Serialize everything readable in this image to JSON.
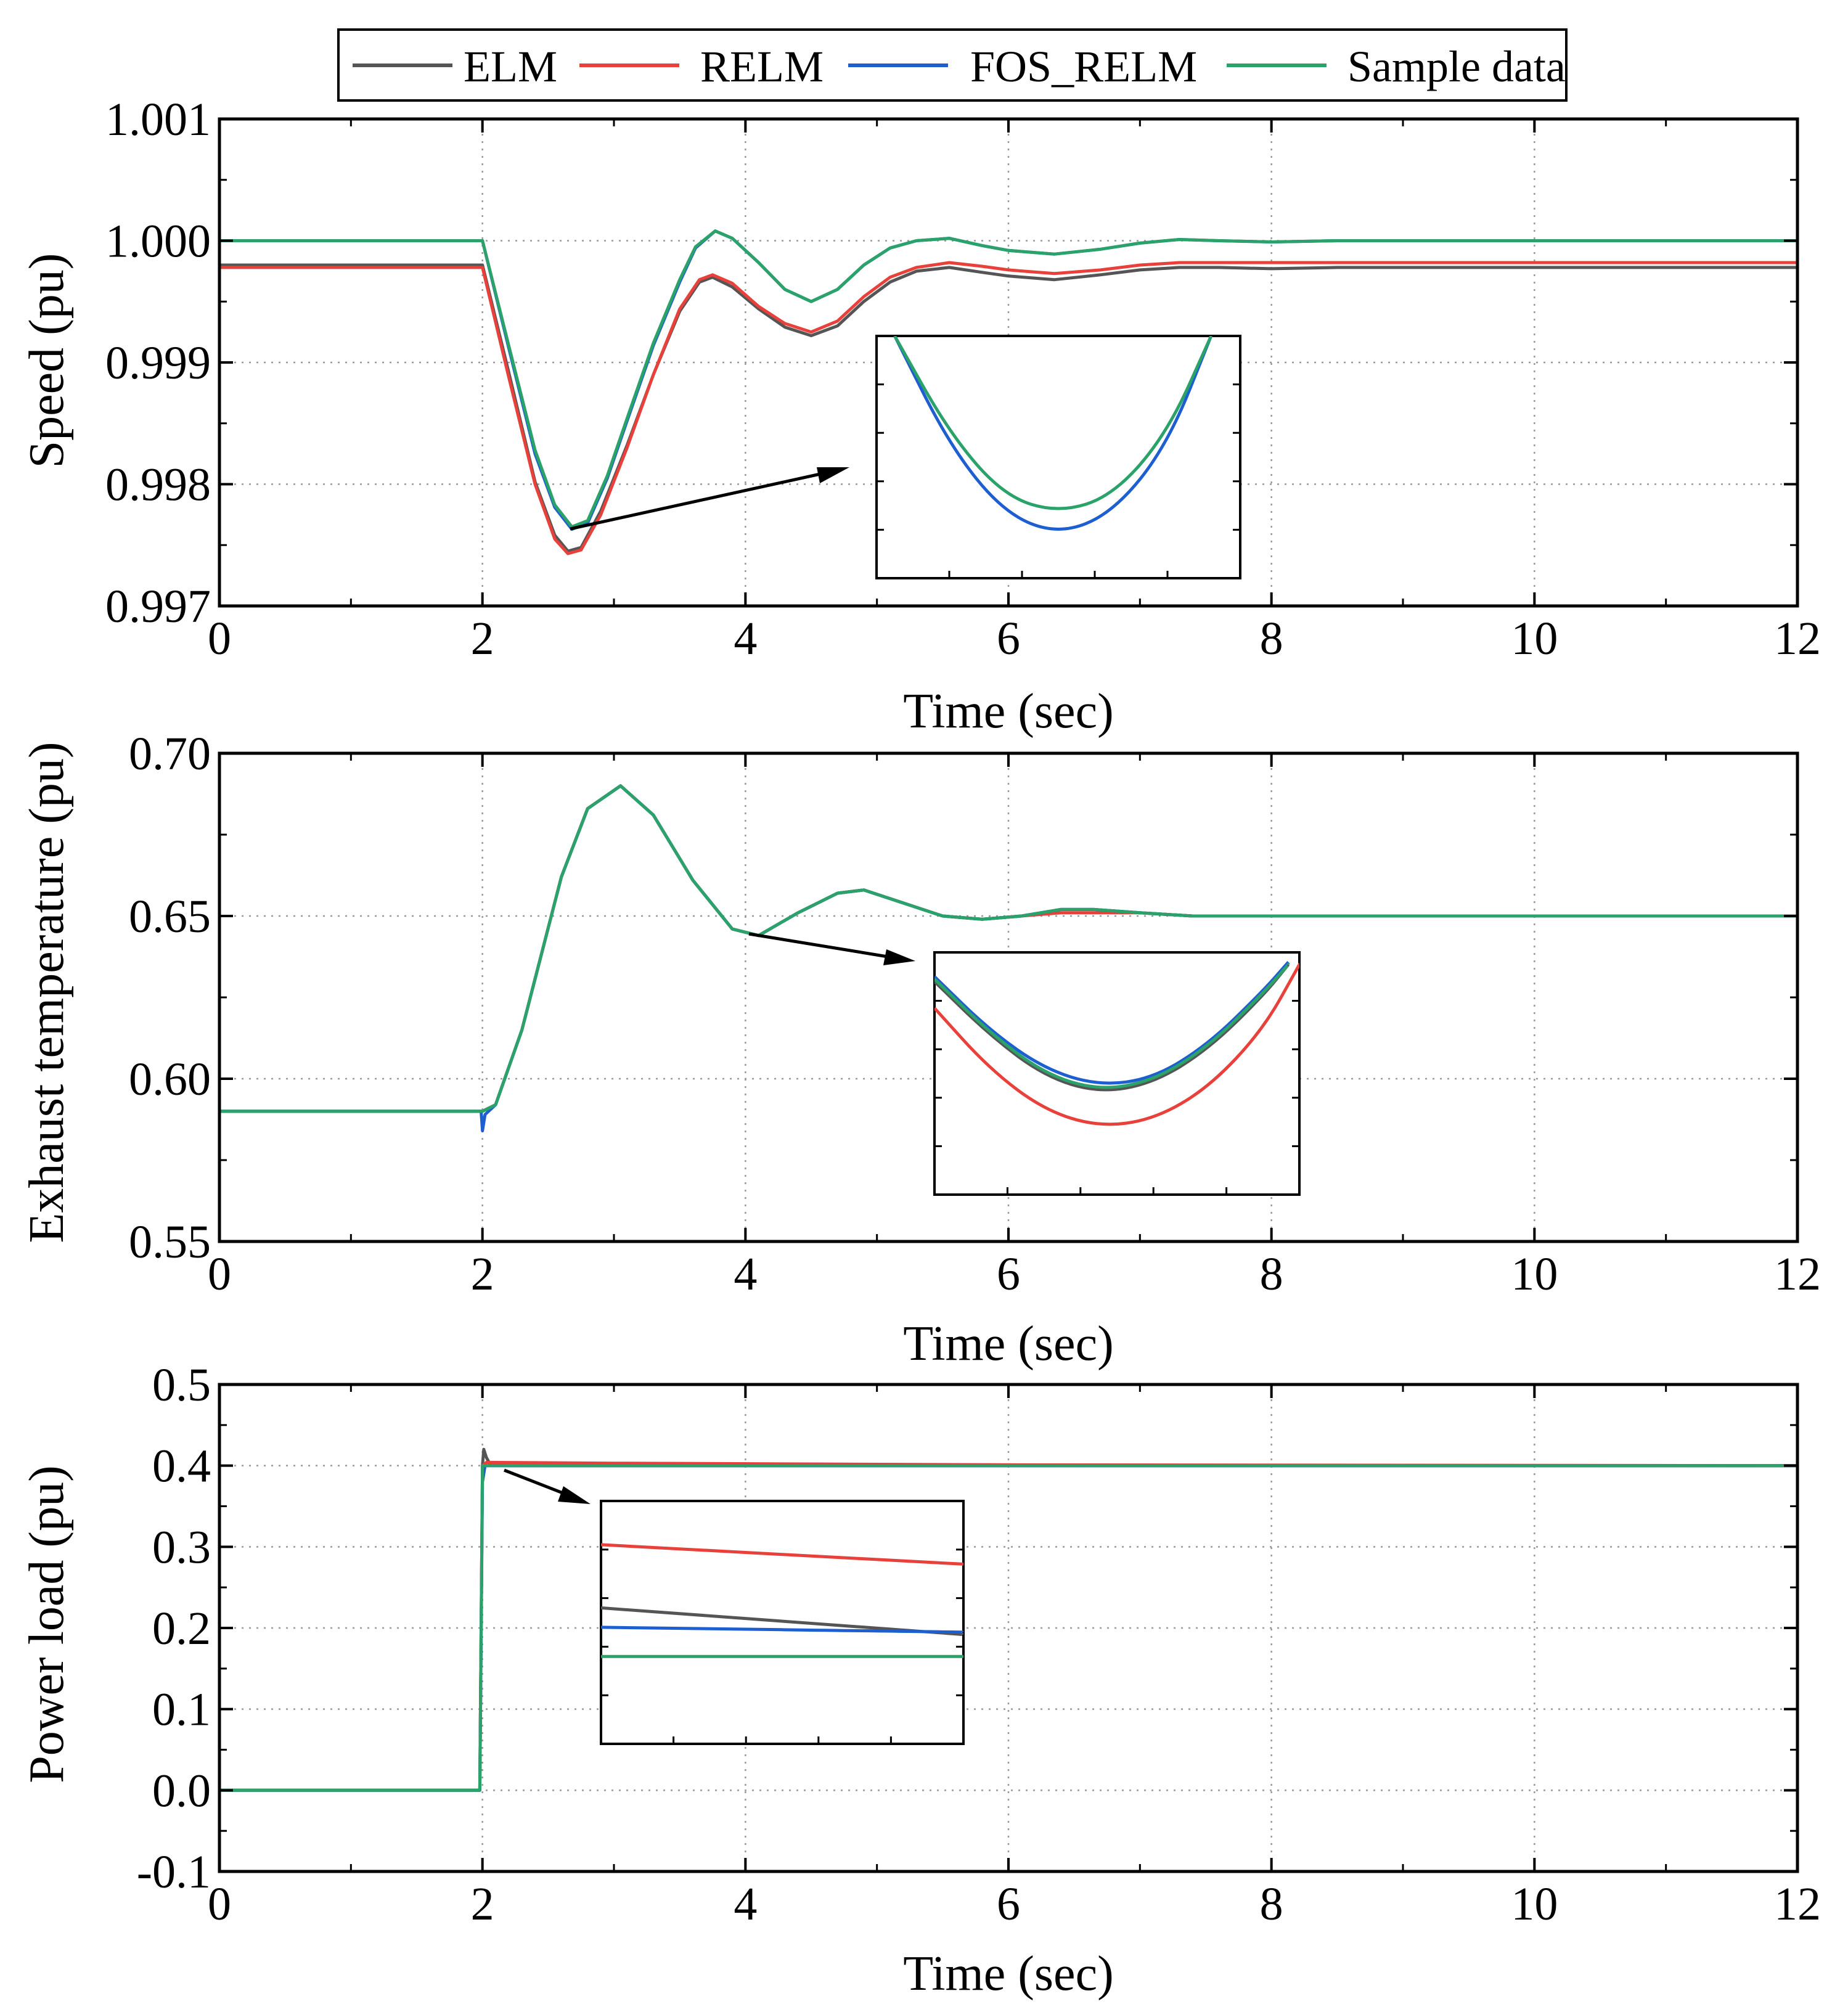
{
  "chart_data": [
    {
      "type": "line",
      "id": "speed",
      "xlabel": "Time (sec)",
      "ylabel": "Speed (pu)",
      "xlim": [
        0,
        12
      ],
      "ylim": [
        0.997,
        1.001
      ],
      "xticks": [
        0,
        2,
        4,
        6,
        8,
        10,
        12
      ],
      "xtick_labels": [
        "0",
        "2",
        "4",
        "6",
        "8",
        "10",
        "12"
      ],
      "yticks": [
        0.997,
        0.998,
        0.999,
        1.0,
        1.001
      ],
      "ytick_labels": [
        "0.997",
        "0.998",
        "0.999",
        "1.000",
        "1.001"
      ],
      "grid": true,
      "series": [
        {
          "name": "ELM",
          "x": [
            0,
            2,
            2.2,
            2.4,
            2.55,
            2.65,
            2.75,
            2.9,
            3.1,
            3.3,
            3.5,
            3.65,
            3.75,
            3.9,
            4.1,
            4.3,
            4.5,
            4.7,
            4.9,
            5.1,
            5.3,
            5.55,
            5.8,
            6.0,
            6.35,
            6.7,
            7.0,
            7.3,
            7.6,
            8.0,
            8.5,
            9.0,
            10,
            11,
            12
          ],
          "y": [
            0.9998,
            0.9998,
            0.99892,
            0.99802,
            0.99758,
            0.99745,
            0.99748,
            0.99778,
            0.99832,
            0.9989,
            0.99942,
            0.99966,
            0.9997,
            0.99962,
            0.99944,
            0.99929,
            0.99922,
            0.9993,
            0.9995,
            0.99966,
            0.99975,
            0.99978,
            0.99974,
            0.99971,
            0.99968,
            0.99972,
            0.99976,
            0.99978,
            0.99978,
            0.99977,
            0.99978,
            0.99978,
            0.99978,
            0.99978,
            0.99978
          ]
        },
        {
          "name": "RELM",
          "x": [
            0,
            2,
            2.2,
            2.4,
            2.55,
            2.65,
            2.75,
            2.9,
            3.1,
            3.3,
            3.5,
            3.65,
            3.75,
            3.9,
            4.1,
            4.3,
            4.5,
            4.7,
            4.9,
            5.1,
            5.3,
            5.55,
            5.8,
            6.0,
            6.35,
            6.7,
            7.0,
            7.3,
            7.6,
            8.0,
            8.5,
            9.0,
            10,
            11,
            12
          ],
          "y": [
            0.99978,
            0.99978,
            0.99888,
            0.998,
            0.99755,
            0.99743,
            0.99746,
            0.99775,
            0.9983,
            0.9989,
            0.99944,
            0.99968,
            0.99972,
            0.99965,
            0.99946,
            0.99932,
            0.99925,
            0.99934,
            0.99954,
            0.9997,
            0.99978,
            0.99982,
            0.99979,
            0.99976,
            0.99973,
            0.99976,
            0.9998,
            0.99982,
            0.99982,
            0.99982,
            0.99982,
            0.99982,
            0.99982,
            0.99982,
            0.99982
          ]
        },
        {
          "name": "FOS_RELM",
          "x": [
            0,
            2,
            2.2,
            2.4,
            2.55,
            2.68,
            2.8,
            2.95,
            3.1,
            3.3,
            3.5,
            3.62,
            3.77,
            3.9,
            4.1,
            4.3,
            4.5,
            4.7,
            4.9,
            5.1,
            5.3,
            5.55,
            5.8,
            6.0,
            6.35,
            6.7,
            7.0,
            7.3,
            7.6,
            8.0,
            8.5,
            9.0,
            10,
            11,
            12
          ],
          "y": [
            1.0,
            1.0,
            0.99912,
            0.99825,
            0.99781,
            0.99763,
            0.99768,
            0.99805,
            0.99852,
            0.99914,
            0.99966,
            0.99994,
            1.00008,
            1.00002,
            0.99982,
            0.9996,
            0.9995,
            0.9996,
            0.9998,
            0.99994,
            1.0,
            1.00002,
            0.99996,
            0.99992,
            0.99989,
            0.99993,
            0.99998,
            1.00001,
            1.0,
            0.99999,
            1.0,
            1.0,
            1.0,
            1.0,
            1.0
          ]
        },
        {
          "name": "Sample data",
          "x": [
            0,
            2,
            2.2,
            2.4,
            2.55,
            2.68,
            2.8,
            2.95,
            3.1,
            3.3,
            3.5,
            3.62,
            3.77,
            3.9,
            4.1,
            4.3,
            4.5,
            4.7,
            4.9,
            5.1,
            5.3,
            5.55,
            5.8,
            6.0,
            6.35,
            6.7,
            7.0,
            7.3,
            7.6,
            8.0,
            8.5,
            9.0,
            10,
            11,
            12
          ],
          "y": [
            1.0,
            1.0,
            0.99914,
            0.99828,
            0.99783,
            0.99765,
            0.9977,
            0.99807,
            0.99854,
            0.99916,
            0.99968,
            0.99995,
            1.00008,
            1.00002,
            0.99982,
            0.9996,
            0.9995,
            0.9996,
            0.9998,
            0.99994,
            1.0,
            1.00002,
            0.99996,
            0.99992,
            0.99989,
            0.99993,
            0.99998,
            1.00001,
            1.0,
            0.99999,
            1.0,
            1.0,
            1.0,
            1.0,
            1.0
          ]
        }
      ],
      "inset": {
        "note": "zoom of the speed minimum near t = 2.7 s",
        "series": [
          {
            "name": "FOS_RELM",
            "x": [
              0.05,
              0.2,
              0.35,
              0.5,
              0.65,
              0.8,
              0.92
            ],
            "y": [
              1.0,
              0.55,
              0.27,
              0.18,
              0.27,
              0.55,
              1.0
            ]
          },
          {
            "name": "Sample data",
            "x": [
              0.05,
              0.2,
              0.35,
              0.5,
              0.65,
              0.8,
              0.92
            ],
            "y": [
              1.0,
              0.6,
              0.34,
              0.27,
              0.34,
              0.6,
              1.0
            ]
          }
        ]
      }
    },
    {
      "type": "line",
      "id": "exhaust",
      "xlabel": "Time (sec)",
      "ylabel": "Exhaust temperature (pu)",
      "xlim": [
        0,
        12
      ],
      "ylim": [
        0.55,
        0.7
      ],
      "xticks": [
        0,
        2,
        4,
        6,
        8,
        10,
        12
      ],
      "xtick_labels": [
        "0",
        "2",
        "4",
        "6",
        "8",
        "10",
        "12"
      ],
      "yticks": [
        0.55,
        0.6,
        0.65,
        0.7
      ],
      "ytick_labels": [
        "0.55",
        "0.60",
        "0.65",
        "0.70"
      ],
      "grid": true,
      "series": [
        {
          "name": "ELM",
          "x": [
            0,
            2,
            2.1,
            2.3,
            2.6,
            2.8,
            3.05,
            3.3,
            3.6,
            3.9,
            4.1,
            4.4,
            4.7,
            4.9,
            5.2,
            5.5,
            5.8,
            6.1,
            6.4,
            6.65,
            7.0,
            7.4,
            8.0,
            9,
            10,
            11,
            12
          ],
          "y": [
            0.59,
            0.59,
            0.592,
            0.615,
            0.662,
            0.683,
            0.69,
            0.681,
            0.661,
            0.646,
            0.644,
            0.651,
            0.657,
            0.658,
            0.654,
            0.65,
            0.649,
            0.65,
            0.652,
            0.652,
            0.651,
            0.65,
            0.65,
            0.65,
            0.65,
            0.65,
            0.65
          ]
        },
        {
          "name": "RELM",
          "x": [
            0,
            2,
            2.1,
            2.3,
            2.6,
            2.8,
            3.05,
            3.3,
            3.6,
            3.9,
            4.1,
            4.4,
            4.7,
            4.9,
            5.2,
            5.5,
            5.8,
            6.1,
            6.4,
            6.65,
            7.0,
            7.4,
            8.0,
            9,
            10,
            11,
            12
          ],
          "y": [
            0.59,
            0.59,
            0.592,
            0.615,
            0.662,
            0.683,
            0.69,
            0.681,
            0.661,
            0.646,
            0.644,
            0.651,
            0.657,
            0.658,
            0.654,
            0.65,
            0.649,
            0.65,
            0.651,
            0.651,
            0.651,
            0.65,
            0.65,
            0.65,
            0.65,
            0.65,
            0.65
          ]
        },
        {
          "name": "FOS_RELM",
          "x": [
            0,
            1.99,
            2.0,
            2.02,
            2.1,
            2.3,
            2.6,
            2.8,
            3.05,
            3.3,
            3.6,
            3.9,
            4.1,
            4.4,
            4.7,
            4.9,
            5.2,
            5.5,
            5.8,
            6.1,
            6.4,
            6.65,
            7.0,
            7.4,
            8.0,
            9,
            10,
            11,
            12
          ],
          "y": [
            0.59,
            0.59,
            0.584,
            0.589,
            0.592,
            0.615,
            0.662,
            0.683,
            0.69,
            0.681,
            0.661,
            0.646,
            0.644,
            0.651,
            0.657,
            0.658,
            0.654,
            0.65,
            0.649,
            0.65,
            0.652,
            0.652,
            0.651,
            0.65,
            0.65,
            0.65,
            0.65,
            0.65,
            0.65
          ]
        },
        {
          "name": "Sample data",
          "x": [
            0,
            2,
            2.1,
            2.3,
            2.6,
            2.8,
            3.05,
            3.3,
            3.6,
            3.9,
            4.1,
            4.4,
            4.7,
            4.9,
            5.2,
            5.5,
            5.8,
            6.1,
            6.4,
            6.65,
            7.0,
            7.4,
            8.0,
            9,
            10,
            11,
            12
          ],
          "y": [
            0.59,
            0.59,
            0.592,
            0.615,
            0.662,
            0.683,
            0.69,
            0.681,
            0.661,
            0.646,
            0.644,
            0.651,
            0.657,
            0.658,
            0.654,
            0.65,
            0.649,
            0.65,
            0.652,
            0.652,
            0.651,
            0.65,
            0.65,
            0.65,
            0.65,
            0.65,
            0.65
          ]
        }
      ],
      "inset": {
        "note": "zoom of the exhaust temperature minimum near t = 4.1 s",
        "series": [
          {
            "name": "ELM",
            "x": [
              0,
              0.15,
              0.3,
              0.45,
              0.6,
              0.75,
              0.9,
              0.97
            ],
            "y": [
              0.88,
              0.66,
              0.49,
              0.42,
              0.46,
              0.6,
              0.82,
              0.95
            ]
          },
          {
            "name": "RELM",
            "x": [
              0,
              0.15,
              0.3,
              0.45,
              0.6,
              0.75,
              0.9,
              1.0
            ],
            "y": [
              0.77,
              0.52,
              0.35,
              0.28,
              0.31,
              0.44,
              0.68,
              0.95
            ]
          },
          {
            "name": "FOS_RELM",
            "x": [
              0,
              0.15,
              0.3,
              0.45,
              0.6,
              0.75,
              0.9,
              0.97
            ],
            "y": [
              0.9,
              0.68,
              0.52,
              0.45,
              0.48,
              0.62,
              0.84,
              0.96
            ]
          },
          {
            "name": "Sample data",
            "x": [
              0,
              0.15,
              0.3,
              0.45,
              0.6,
              0.75,
              0.9,
              0.97
            ],
            "y": [
              0.89,
              0.67,
              0.5,
              0.43,
              0.47,
              0.61,
              0.83,
              0.95
            ]
          }
        ]
      }
    },
    {
      "type": "line",
      "id": "power",
      "xlabel": "Time (sec)",
      "ylabel": "Power load (pu)",
      "xlim": [
        0,
        12
      ],
      "ylim": [
        -0.1,
        0.5
      ],
      "xticks": [
        0,
        2,
        4,
        6,
        8,
        10,
        12
      ],
      "xtick_labels": [
        "0",
        "2",
        "4",
        "6",
        "8",
        "10",
        "12"
      ],
      "yticks": [
        -0.1,
        0.0,
        0.1,
        0.2,
        0.3,
        0.4,
        0.5
      ],
      "ytick_labels": [
        "-0.1",
        "0.0",
        "0.1",
        "0.2",
        "0.3",
        "0.4",
        "0.5"
      ],
      "grid": true,
      "series": [
        {
          "name": "ELM",
          "x": [
            0,
            1.98,
            2.0,
            2.01,
            2.03,
            2.06,
            2.2,
            12
          ],
          "y": [
            0.0,
            0.0,
            0.4,
            0.42,
            0.41,
            0.401,
            0.4,
            0.4
          ]
        },
        {
          "name": "RELM",
          "x": [
            0,
            1.98,
            2.0,
            2.03,
            3.0,
            4.5,
            6.0,
            12
          ],
          "y": [
            0.0,
            0.0,
            0.4,
            0.404,
            0.403,
            0.402,
            0.401,
            0.4
          ]
        },
        {
          "name": "FOS_RELM",
          "x": [
            0,
            1.98,
            2.0,
            2.02,
            2.05,
            12
          ],
          "y": [
            0.0,
            0.0,
            0.38,
            0.4,
            0.4,
            0.4
          ]
        },
        {
          "name": "Sample data",
          "x": [
            0,
            1.98,
            2.0,
            12
          ],
          "y": [
            0.0,
            0.0,
            0.4,
            0.4
          ]
        }
      ],
      "inset": {
        "note": "zoom of the load plateau just after the step",
        "series": [
          {
            "name": "ELM",
            "x": [
              0,
              1
            ],
            "y": [
              0.56,
              0.45
            ]
          },
          {
            "name": "RELM",
            "x": [
              0,
              1
            ],
            "y": [
              0.82,
              0.74
            ]
          },
          {
            "name": "FOS_RELM",
            "x": [
              0,
              1
            ],
            "y": [
              0.48,
              0.46
            ]
          },
          {
            "name": "Sample data",
            "x": [
              0,
              1
            ],
            "y": [
              0.36,
              0.36
            ]
          }
        ]
      }
    }
  ],
  "legend": {
    "entries": [
      {
        "name": "ELM",
        "color": "#555555"
      },
      {
        "name": "RELM",
        "color": "#e8403a"
      },
      {
        "name": "FOS_RELM",
        "color": "#1d5fd1"
      },
      {
        "name": "Sample data",
        "color": "#2aa26a"
      }
    ],
    "placement": "top-center"
  }
}
